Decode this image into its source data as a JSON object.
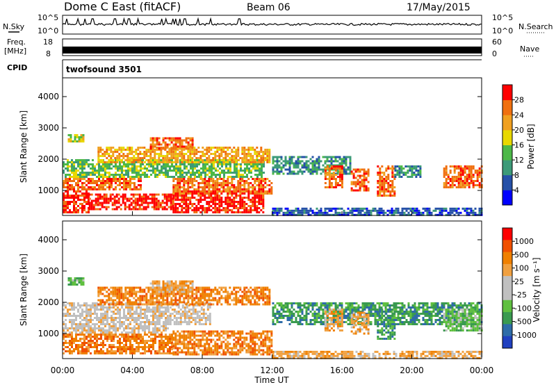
{
  "header": {
    "title": "Dome C East (fitACF)",
    "beam": "Beam 06",
    "date": "17/May/2015"
  },
  "noise_panel": {
    "left_label": "N.Sky",
    "right_label": "N.Search",
    "ticks": [
      "10^5",
      "10^0"
    ]
  },
  "freq_panel": {
    "left_label_line1": "Freq.",
    "left_label_line2": "[MHz]",
    "left_ticks": [
      "18",
      "8"
    ],
    "right_label": "Nave",
    "right_ticks": [
      "60",
      "0"
    ]
  },
  "cpid_panel": {
    "label": "CPID",
    "value": "twofsound 3501"
  },
  "x_axis": {
    "label": "Time UT",
    "ticks": [
      "00:00",
      "04:00",
      "08:00",
      "12:00",
      "16:00",
      "20:00",
      "00:00"
    ]
  },
  "colors": {
    "power_scale": [
      "#0000ff",
      "#2550a8",
      "#3c9a78",
      "#4cb848",
      "#e8d800",
      "#f0a020",
      "#f07010",
      "#ff0000"
    ],
    "velocity_scale": [
      "#ff0000",
      "#f05000",
      "#f08000",
      "#f0a040",
      "#c0c0c0",
      "#c0c0c0",
      "#60c040",
      "#3a9a50",
      "#2e6ca8",
      "#2040c0"
    ]
  },
  "chart_data": [
    {
      "type": "heatmap",
      "name": "power",
      "ylabel": "Slant Range [km]",
      "y_ticks": [
        1000,
        2000,
        3000,
        4000
      ],
      "ylim": [
        200,
        4600
      ],
      "xlim_hours": [
        0,
        24
      ],
      "colorbar_label": "Power [dB]",
      "colorbar_ticks": [
        "4",
        "8",
        "12",
        "16",
        "20",
        "24",
        "28"
      ],
      "regions": [
        {
          "t": [
            0.0,
            1.5
          ],
          "r": [
            300,
            1000
          ],
          "level": 7
        },
        {
          "t": [
            1.5,
            6.3
          ],
          "r": [
            400,
            900
          ],
          "level": 7
        },
        {
          "t": [
            6.3,
            11.5
          ],
          "r": [
            300,
            1000
          ],
          "level": 7
        },
        {
          "t": [
            0.0,
            4.5
          ],
          "r": [
            1000,
            1400
          ],
          "level": 6
        },
        {
          "t": [
            6.3,
            12.0
          ],
          "r": [
            900,
            1400
          ],
          "level": 6
        },
        {
          "t": [
            0.0,
            11.5
          ],
          "r": [
            1400,
            2000
          ],
          "level": 3
        },
        {
          "t": [
            2.0,
            11.8
          ],
          "r": [
            1900,
            2400
          ],
          "level": 5
        },
        {
          "t": [
            5.0,
            7.5
          ],
          "r": [
            2300,
            2700
          ],
          "level": 6
        },
        {
          "t": [
            0.3,
            1.2
          ],
          "r": [
            2550,
            2800
          ],
          "level": 4
        },
        {
          "t": [
            12.0,
            16.5
          ],
          "r": [
            1500,
            2100
          ],
          "level": 2
        },
        {
          "t": [
            15.0,
            16.0
          ],
          "r": [
            1100,
            1800
          ],
          "level": 6
        },
        {
          "t": [
            16.5,
            17.5
          ],
          "r": [
            1000,
            1700
          ],
          "level": 6
        },
        {
          "t": [
            18.0,
            19.0
          ],
          "r": [
            800,
            1800
          ],
          "level": 6
        },
        {
          "t": [
            19.0,
            20.5
          ],
          "r": [
            1400,
            1800
          ],
          "level": 2
        },
        {
          "t": [
            21.8,
            24.0
          ],
          "r": [
            1100,
            1800
          ],
          "level": 6
        },
        {
          "t": [
            12.0,
            24.0
          ],
          "r": [
            200,
            450
          ],
          "level": 1
        }
      ]
    },
    {
      "type": "heatmap",
      "name": "velocity",
      "ylabel": "Slant Range [km]",
      "y_ticks": [
        1000,
        2000,
        3000,
        4000
      ],
      "ylim": [
        200,
        4600
      ],
      "xlim_hours": [
        0,
        24
      ],
      "colorbar_label": "Velocity [m s⁻¹]",
      "colorbar_ticks": [
        "1000",
        "500",
        "100",
        "25",
        "-25",
        "-100",
        "-500",
        "-1000"
      ],
      "regions": [
        {
          "t": [
            0.0,
            6.3
          ],
          "r": [
            350,
            1000
          ],
          "level": 2
        },
        {
          "t": [
            6.3,
            12.0
          ],
          "r": [
            300,
            1100
          ],
          "level": 2
        },
        {
          "t": [
            0.0,
            6.0
          ],
          "r": [
            1000,
            2000
          ],
          "level": 4
        },
        {
          "t": [
            6.0,
            8.5
          ],
          "r": [
            1300,
            2000
          ],
          "level": 4
        },
        {
          "t": [
            2.0,
            11.8
          ],
          "r": [
            1900,
            2500
          ],
          "level": 2
        },
        {
          "t": [
            5.0,
            7.5
          ],
          "r": [
            2300,
            2700
          ],
          "level": 3
        },
        {
          "t": [
            0.3,
            1.2
          ],
          "r": [
            2550,
            2800
          ],
          "level": 6
        },
        {
          "t": [
            12.0,
            24.0
          ],
          "r": [
            1300,
            2000
          ],
          "level": 7
        },
        {
          "t": [
            15.0,
            16.0
          ],
          "r": [
            1100,
            1800
          ],
          "level": 3
        },
        {
          "t": [
            16.5,
            17.5
          ],
          "r": [
            1000,
            1700
          ],
          "level": 3
        },
        {
          "t": [
            18.0,
            19.0
          ],
          "r": [
            800,
            1800
          ],
          "level": 7
        },
        {
          "t": [
            21.8,
            24.0
          ],
          "r": [
            1100,
            1800
          ],
          "level": 6
        },
        {
          "t": [
            12.0,
            24.0
          ],
          "r": [
            200,
            450
          ],
          "level": 3
        }
      ]
    }
  ]
}
